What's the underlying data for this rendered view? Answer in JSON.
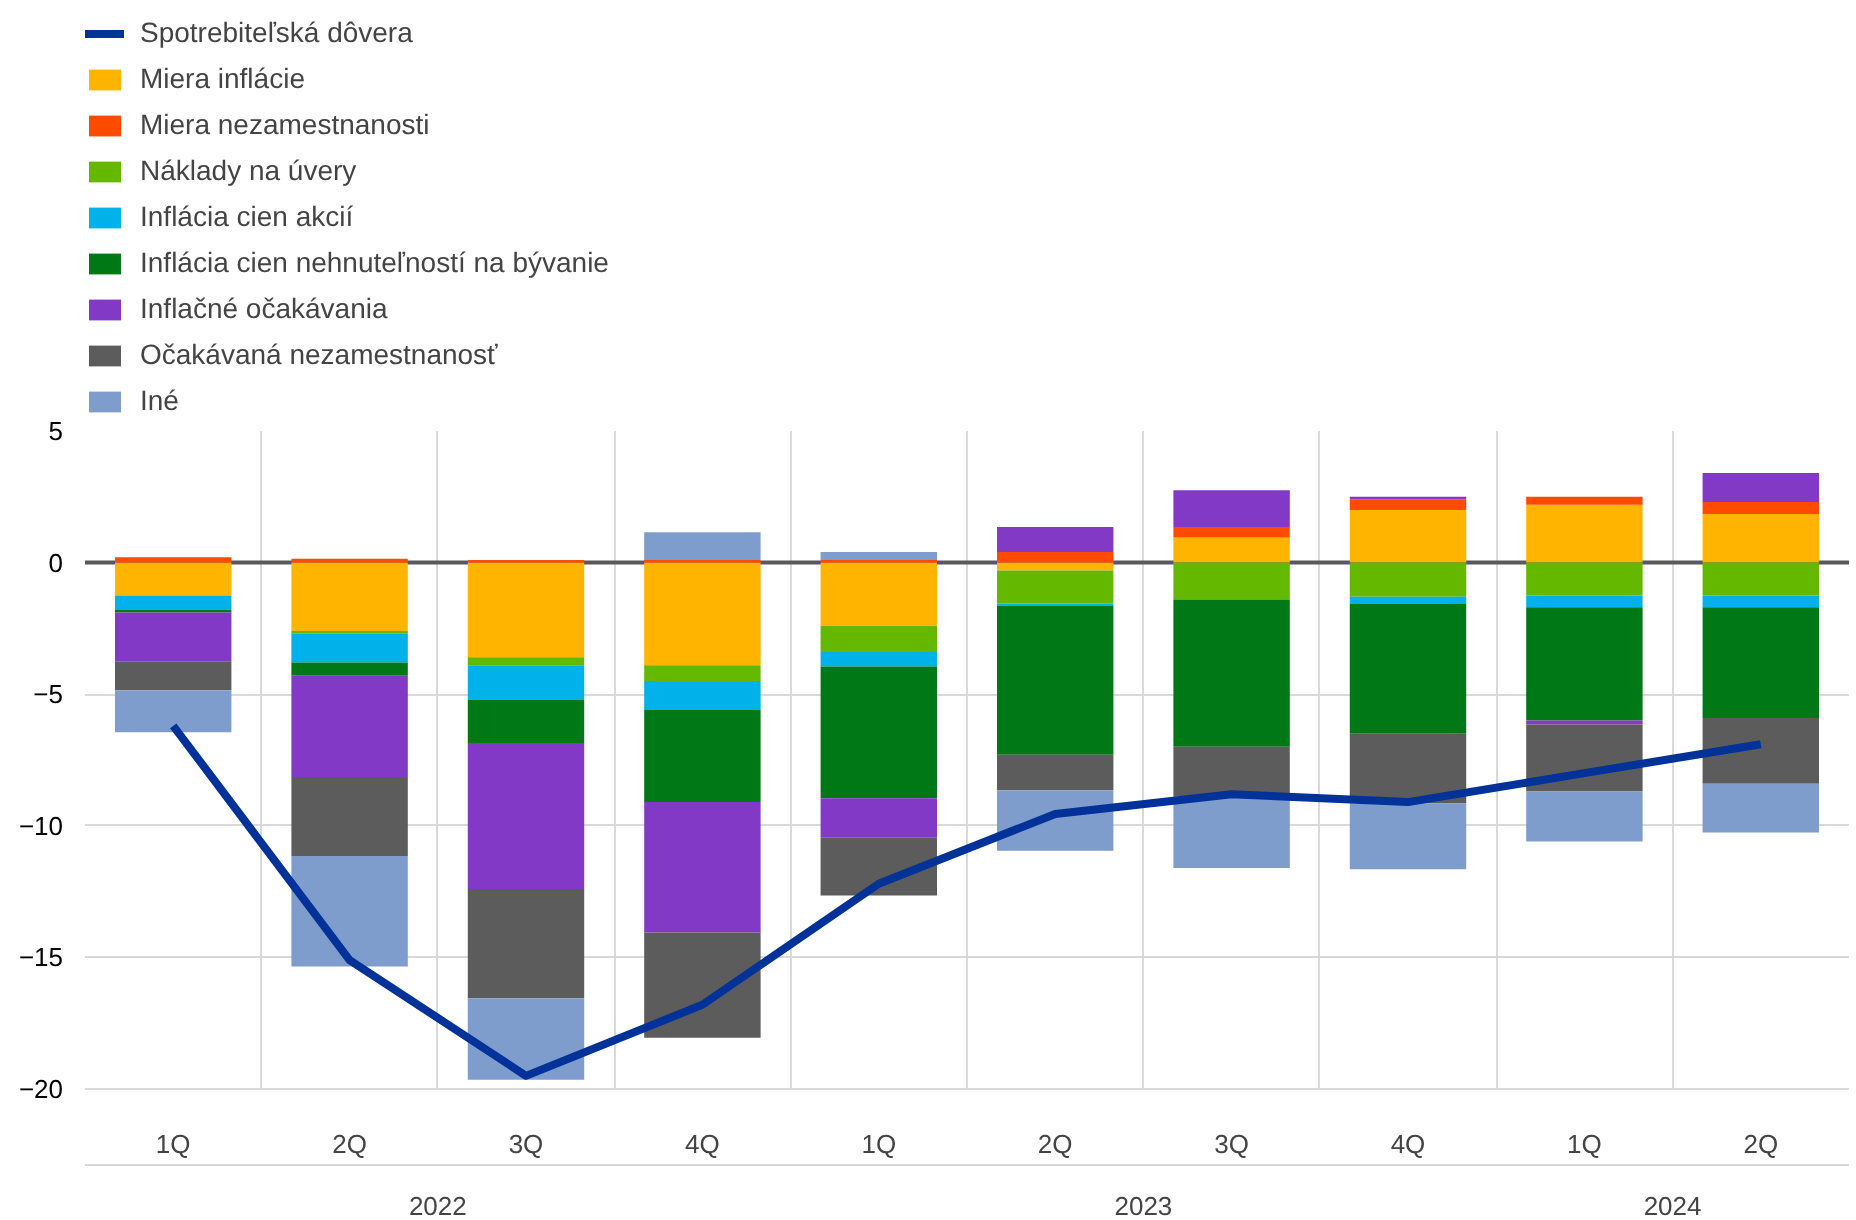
{
  "chart_data": {
    "type": "bar",
    "stacked": true,
    "categories": [
      "1Q",
      "2Q",
      "3Q",
      "4Q",
      "1Q",
      "2Q",
      "3Q",
      "4Q",
      "1Q",
      "2Q"
    ],
    "annotations": [
      "2022",
      "2023",
      "2024"
    ],
    "series": [
      {
        "name": "Spotrebiteľská dôvera",
        "type": "line",
        "color": "#003299",
        "values": [
          -6.2,
          -15.1,
          -19.5,
          -16.8,
          -12.2,
          -9.55,
          -8.8,
          -9.1,
          -8.0,
          -6.9
        ]
      },
      {
        "name": "Miera inflácie",
        "color": "#ffb400",
        "values": [
          -1.25,
          -2.6,
          -3.6,
          -3.9,
          -2.4,
          -0.3,
          0.95,
          2.0,
          2.2,
          1.85
        ]
      },
      {
        "name": "Miera nezamestnanosti",
        "color": "#ff4b00",
        "values": [
          0.2,
          0.15,
          0.1,
          0.1,
          0.1,
          0.4,
          0.4,
          0.4,
          0.3,
          0.45
        ]
      },
      {
        "name": "Náklady na úvery",
        "color": "#65b800",
        "values": [
          0,
          -0.1,
          -0.3,
          -0.6,
          -1.0,
          -1.25,
          -1.4,
          -1.3,
          -1.25,
          -1.25
        ]
      },
      {
        "name": "Inflácia cien akcií",
        "color": "#00b1ea",
        "values": [
          -0.55,
          -1.1,
          -1.3,
          -1.1,
          -0.55,
          -0.1,
          0,
          -0.25,
          -0.45,
          -0.45
        ]
      },
      {
        "name": "Inflácia cien nehnuteľností na bývanie",
        "color": "#007816",
        "values": [
          -0.1,
          -0.5,
          -1.65,
          -3.5,
          -5.0,
          -5.65,
          -5.6,
          -4.95,
          -4.3,
          -4.2
        ]
      },
      {
        "name": "Inflačné očakávania",
        "color": "#8139c6",
        "values": [
          -1.85,
          -3.85,
          -5.55,
          -4.95,
          -1.5,
          0.95,
          1.4,
          0.1,
          -0.15,
          1.1
        ]
      },
      {
        "name": "Očakávaná nezamestnanosť",
        "color": "#5c5c5c",
        "values": [
          -1.1,
          -3.0,
          -4.15,
          -4.0,
          -2.2,
          -1.35,
          -1.9,
          -2.65,
          -2.55,
          -2.5
        ]
      },
      {
        "name": "Iné",
        "color": "#7f9dcc",
        "values": [
          -1.6,
          -4.2,
          -3.1,
          1.05,
          0.3,
          -2.3,
          -2.7,
          -2.5,
          -1.9,
          -1.85
        ]
      }
    ],
    "ylim": [
      -20,
      5
    ],
    "yticks": [
      -20,
      -15,
      -10,
      -5,
      0,
      5
    ],
    "ref_lines": [
      {
        "axis": "y",
        "value": 0,
        "color": "#595959"
      }
    ],
    "grid": true,
    "legend": "top left"
  }
}
